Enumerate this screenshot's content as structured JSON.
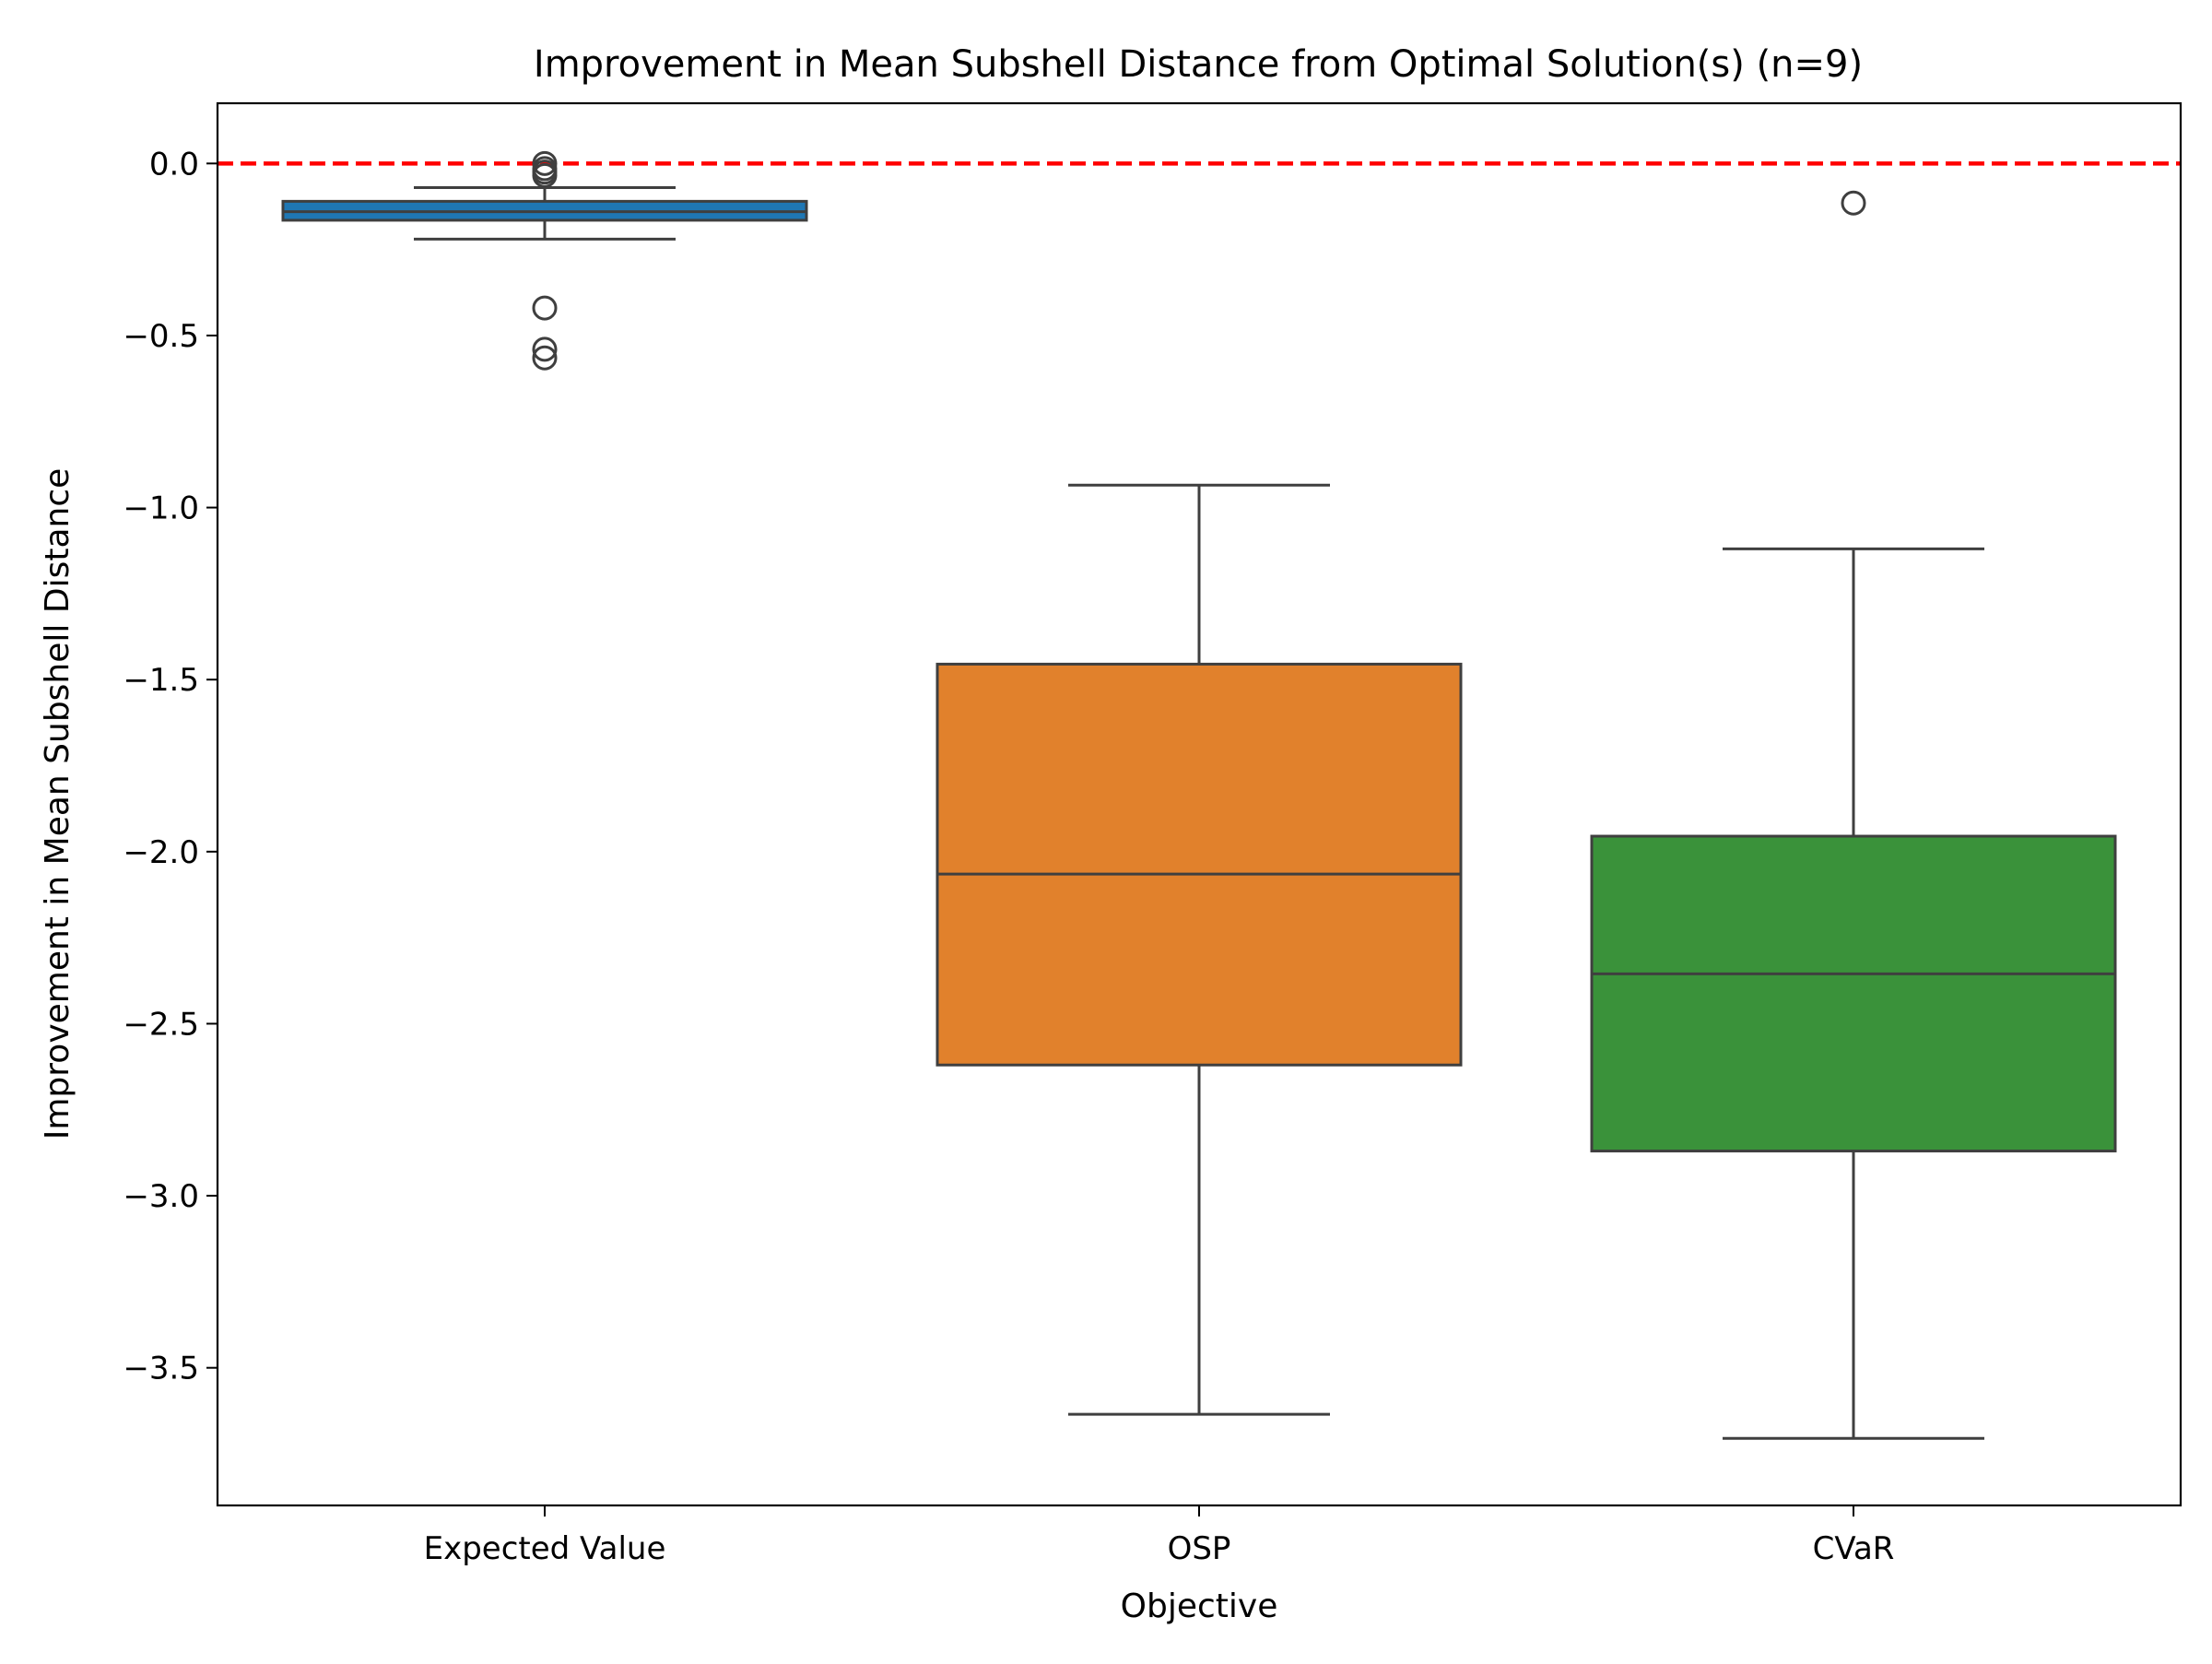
{
  "chart_data": {
    "type": "box",
    "title": "Improvement in Mean Subshell Distance from Optimal Solution(s) (n=9)",
    "xlabel": "Objective",
    "ylabel": "Improvement in Mean Subshell Distance",
    "ylim": [
      -3.9,
      0.175
    ],
    "yticks": [
      0.0,
      -0.5,
      -1.0,
      -1.5,
      -2.0,
      -2.5,
      -3.0,
      -3.5
    ],
    "ytick_labels": [
      "0.0",
      "−0.5",
      "−1.0",
      "−1.5",
      "−2.0",
      "−2.5",
      "−3.0",
      "−3.5"
    ],
    "grid": false,
    "reference_line": {
      "y": 0.0,
      "color": "#ff0000",
      "style": "dashed"
    },
    "categories": [
      "Expected Value",
      "OSP",
      "CVaR"
    ],
    "boxes": [
      {
        "category": "Expected Value",
        "color": "#1f77b4",
        "whisker_low": -0.22,
        "q1": -0.165,
        "median": -0.14,
        "q3": -0.11,
        "whisker_high": -0.07,
        "outliers": [
          0.0,
          -0.015,
          -0.025,
          -0.035,
          -0.42,
          -0.54,
          -0.565
        ]
      },
      {
        "category": "OSP",
        "color": "#e1812c",
        "whisker_low": -3.635,
        "q1": -2.62,
        "median": -2.065,
        "q3": -1.455,
        "whisker_high": -0.935,
        "outliers": []
      },
      {
        "category": "CVaR",
        "color": "#3a923a",
        "whisker_low": -3.705,
        "q1": -2.87,
        "median": -2.355,
        "q3": -1.955,
        "whisker_high": -1.12,
        "outliers": [
          -0.115
        ]
      }
    ]
  }
}
